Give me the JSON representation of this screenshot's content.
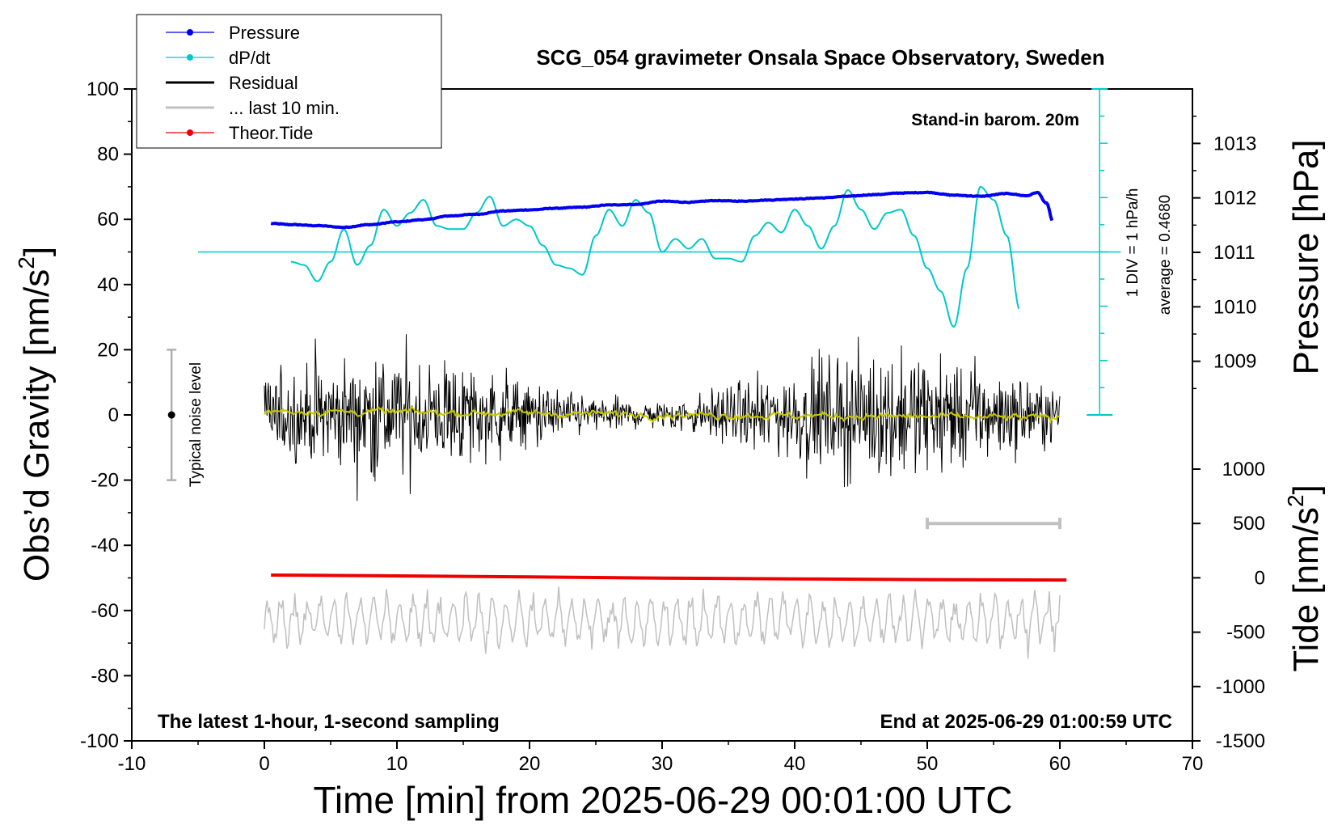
{
  "chart_data": {
    "type": "line",
    "title": "SCG_054 gravimeter Onsala Space Observatory, Sweden",
    "xlabel": "Time [min] from 2025-06-29 00:01:00 UTC",
    "ylabel_left_main": "Obs’d Gravity [nm/s",
    "ylabel_left_sup": "2",
    "ylabel_left_end": "]",
    "ylabel_right_top": "Pressure [hPa]",
    "ylabel_right_bottom_main": "Tide [nm/s",
    "ylabel_right_bottom_sup": "2",
    "ylabel_right_bottom_end": "]",
    "xlim": [
      -10,
      70
    ],
    "ylim_left": [
      -100,
      100
    ],
    "pressure_axis": {
      "range": [
        1008,
        1014
      ],
      "ticks": [
        1009,
        1010,
        1011,
        1012,
        1013
      ]
    },
    "tide_axis": {
      "range": [
        -1500,
        1000
      ],
      "ticks": [
        1000,
        500,
        0,
        -500,
        -1000,
        -1500
      ]
    },
    "x_ticks": [
      -10,
      0,
      10,
      20,
      30,
      40,
      50,
      60,
      70
    ],
    "y_ticks_left": [
      100,
      80,
      60,
      40,
      20,
      0,
      -20,
      -40,
      -60,
      -80,
      -100
    ],
    "grid": false,
    "legend_placement": "top-left",
    "legend": [
      {
        "label": "Pressure",
        "color": "#0000ee",
        "marker": true
      },
      {
        "label": "dP/dt",
        "color": "#00c8c8",
        "marker": true
      },
      {
        "label": "Residual",
        "color": "#000000",
        "marker": false
      },
      {
        "label": "... last 10 min.",
        "color": "#c0c0c0",
        "marker": false
      },
      {
        "label": "Theor.Tide",
        "color": "#ee0000",
        "marker": true
      }
    ],
    "annotations": {
      "barometer": "Stand-in barom. 20m",
      "div_label": "1 DIV = 1 hPa/h",
      "average_label": "average = 0.4680",
      "noise_label": "Typical noise level",
      "bottom_left": "The latest 1-hour, 1-second sampling",
      "bottom_right": "End at 2025-06-29 01:00:59 UTC"
    },
    "noise_bar": {
      "x": -7,
      "center": 0,
      "half_range": 20
    },
    "last10_bar": {
      "x": [
        50,
        60
      ],
      "tide_value": 500
    },
    "series": [
      {
        "name": "Pressure",
        "axis": "pressure",
        "color": "#0000ee",
        "x": [
          0.5,
          2,
          4,
          6,
          8,
          10,
          12,
          14,
          16,
          18,
          20,
          22,
          24,
          26,
          28,
          30,
          32,
          34,
          36,
          38,
          40,
          42,
          44,
          46,
          48,
          50,
          52,
          54,
          56,
          57.5,
          58.3,
          59,
          59.5
        ],
        "y": [
          1011.53,
          1011.51,
          1011.49,
          1011.46,
          1011.51,
          1011.56,
          1011.6,
          1011.67,
          1011.7,
          1011.76,
          1011.78,
          1011.81,
          1011.83,
          1011.87,
          1011.88,
          1011.94,
          1011.92,
          1011.95,
          1011.94,
          1011.96,
          1011.98,
          1012.0,
          1012.03,
          1012.06,
          1012.09,
          1012.1,
          1012.05,
          1012.03,
          1012.08,
          1012.04,
          1012.1,
          1011.9,
          1011.55
        ]
      },
      {
        "name": "dP/dt",
        "axis": "left",
        "color": "#00c8c8",
        "baseline": 50,
        "x": [
          2,
          3,
          4,
          5,
          6,
          7,
          8,
          9,
          10,
          11,
          12,
          13,
          14,
          15,
          16,
          17,
          18,
          19,
          20,
          21,
          22,
          23,
          24,
          25,
          26,
          27,
          28,
          29,
          30,
          31,
          32,
          33,
          34,
          35,
          36,
          37,
          38,
          39,
          40,
          41,
          42,
          43,
          44,
          45,
          46,
          47,
          48,
          49,
          50,
          51,
          52,
          53,
          54,
          55,
          56,
          57
        ],
        "y": [
          47,
          46,
          41,
          47,
          57,
          46,
          52,
          63,
          58,
          62,
          66,
          58,
          57,
          57,
          62,
          67,
          58,
          60,
          58,
          52,
          46,
          45,
          43,
          55,
          63,
          58,
          66,
          62,
          50,
          54,
          51,
          54,
          48,
          48,
          47,
          55,
          59,
          56,
          63,
          58,
          51,
          58,
          69,
          63,
          57,
          62,
          63,
          55,
          45,
          38,
          27,
          45,
          70,
          66,
          55,
          32
        ]
      },
      {
        "name": "Residual",
        "axis": "left",
        "color": "#000000",
        "x_range": [
          0,
          60
        ],
        "noise_amplitude": 8,
        "mean": 0
      },
      {
        "name": "... last 10 min.",
        "axis": "left",
        "color": "#c0c0c0",
        "x_range": [
          0,
          60
        ],
        "center": -63,
        "amplitude": 6
      },
      {
        "name": "Theor.Tide",
        "axis": "tide",
        "color": "#ee0000",
        "x": [
          0.5,
          10,
          20,
          30,
          40,
          50,
          60.5
        ],
        "y": [
          25,
          18,
          8,
          -2,
          -10,
          -16,
          -20
        ]
      }
    ]
  }
}
